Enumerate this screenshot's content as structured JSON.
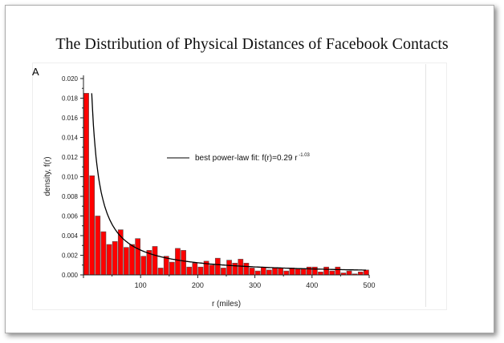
{
  "chart_data": {
    "type": "bar",
    "title": "The Distribution of Physical Distances of Facebook Contacts",
    "panel_label": "A",
    "xlabel": "r (miles)",
    "ylabel": "density, f(r)",
    "xlim": [
      0,
      500
    ],
    "ylim": [
      0,
      0.02
    ],
    "xticks": [
      "100",
      "200",
      "300",
      "400",
      "500"
    ],
    "yticks": [
      "0.000",
      "0.002",
      "0.004",
      "0.006",
      "0.008",
      "0.010",
      "0.012",
      "0.014",
      "0.016",
      "0.018",
      "0.020"
    ],
    "bin_width": 10,
    "values": [
      0.0185,
      0.0101,
      0.006,
      0.0044,
      0.0031,
      0.0034,
      0.0046,
      0.0028,
      0.0031,
      0.0037,
      0.0019,
      0.0025,
      0.0029,
      0.0007,
      0.0019,
      0.0013,
      0.0027,
      0.0025,
      0.0008,
      0.0012,
      0.0008,
      0.0014,
      0.001,
      0.0017,
      0.0007,
      0.0015,
      0.0012,
      0.0016,
      0.0012,
      0.0007,
      0.0004,
      0.0008,
      0.0005,
      0.0007,
      0.0007,
      0.0004,
      0.0007,
      0.0006,
      0.0006,
      0.0008,
      0.0008,
      0.0003,
      0.0008,
      0.0004,
      0.0008,
      0.0002,
      0.0004,
      0.0001,
      0.0003,
      0.0005
    ],
    "fit": {
      "label": "best power-law fit: f(r)=0.29 r",
      "exponent": "-1.03",
      "a": 0.29,
      "b": -1.03
    },
    "bar_color": "#ff0000",
    "grid": false,
    "legend": "center-right"
  }
}
